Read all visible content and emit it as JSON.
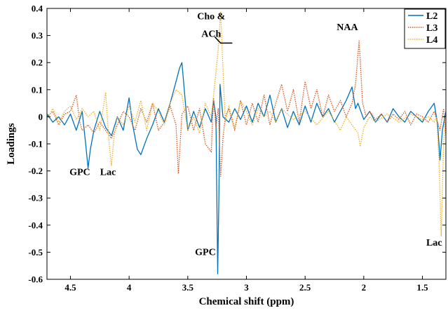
{
  "chart_data": {
    "type": "line",
    "xlabel": "Chemical shift (ppm)",
    "ylabel": "Loadings",
    "xlim": [
      4.7,
      1.3
    ],
    "x_reversed": true,
    "ylim": [
      -0.6,
      0.4
    ],
    "x_ticks": [
      4.5,
      4,
      3.5,
      3,
      2.5,
      2,
      1.5
    ],
    "x_tick_labels": [
      "4.5",
      "4",
      "3.5",
      "3",
      "2.5",
      "2",
      "1.5"
    ],
    "y_ticks": [
      0.4,
      0.3,
      0.2,
      0.1,
      0,
      -0.1,
      -0.2,
      -0.3,
      -0.4,
      -0.5,
      -0.6
    ],
    "y_tick_labels": [
      "0.4",
      "0.3",
      "0.2",
      "0.1",
      "0",
      "-0.1",
      "-0.2",
      "-0.3",
      "-0.4",
      "-0.5",
      "-0.6"
    ],
    "grid": false,
    "legend_position": "top-right",
    "series": [
      {
        "name": "L2",
        "color": "#0072BD",
        "style": "solid",
        "points": [
          [
            4.7,
            0.01
          ],
          [
            4.65,
            -0.02
          ],
          [
            4.6,
            0.0
          ],
          [
            4.55,
            -0.03
          ],
          [
            4.5,
            0.01
          ],
          [
            4.45,
            -0.05
          ],
          [
            4.4,
            0.02
          ],
          [
            4.37,
            -0.1
          ],
          [
            4.35,
            -0.19
          ],
          [
            4.33,
            -0.12
          ],
          [
            4.3,
            -0.05
          ],
          [
            4.25,
            0.02
          ],
          [
            4.2,
            -0.04
          ],
          [
            4.15,
            -0.07
          ],
          [
            4.1,
            0.0
          ],
          [
            4.05,
            -0.05
          ],
          [
            4.0,
            0.07
          ],
          [
            3.97,
            -0.03
          ],
          [
            3.93,
            -0.12
          ],
          [
            3.9,
            -0.14
          ],
          [
            3.85,
            -0.08
          ],
          [
            3.8,
            -0.03
          ],
          [
            3.75,
            0.03
          ],
          [
            3.7,
            -0.02
          ],
          [
            3.65,
            0.05
          ],
          [
            3.6,
            0.13
          ],
          [
            3.57,
            0.18
          ],
          [
            3.55,
            0.2
          ],
          [
            3.52,
            0.05
          ],
          [
            3.5,
            -0.05
          ],
          [
            3.45,
            0.02
          ],
          [
            3.4,
            -0.04
          ],
          [
            3.35,
            0.03
          ],
          [
            3.3,
            -0.02
          ],
          [
            3.28,
            0.06
          ],
          [
            3.26,
            0.0
          ],
          [
            3.245,
            -0.58
          ],
          [
            3.235,
            -0.3
          ],
          [
            3.225,
            0.12
          ],
          [
            3.2,
            0.0
          ],
          [
            3.15,
            -0.02
          ],
          [
            3.1,
            0.03
          ],
          [
            3.05,
            -0.01
          ],
          [
            3.0,
            0.04
          ],
          [
            2.95,
            -0.02
          ],
          [
            2.9,
            0.05
          ],
          [
            2.85,
            0.0
          ],
          [
            2.8,
            0.08
          ],
          [
            2.75,
            -0.02
          ],
          [
            2.7,
            0.03
          ],
          [
            2.65,
            -0.04
          ],
          [
            2.6,
            0.02
          ],
          [
            2.55,
            -0.03
          ],
          [
            2.5,
            0.04
          ],
          [
            2.45,
            -0.02
          ],
          [
            2.4,
            0.05
          ],
          [
            2.35,
            0.0
          ],
          [
            2.3,
            0.03
          ],
          [
            2.25,
            -0.02
          ],
          [
            2.2,
            0.02
          ],
          [
            2.15,
            0.06
          ],
          [
            2.1,
            0.11
          ],
          [
            2.07,
            0.03
          ],
          [
            2.05,
            0.05
          ],
          [
            2.0,
            -0.01
          ],
          [
            1.95,
            0.02
          ],
          [
            1.9,
            -0.02
          ],
          [
            1.85,
            0.01
          ],
          [
            1.8,
            -0.02
          ],
          [
            1.75,
            0.03
          ],
          [
            1.7,
            0.0
          ],
          [
            1.65,
            -0.02
          ],
          [
            1.6,
            0.02
          ],
          [
            1.55,
            0.0
          ],
          [
            1.5,
            -0.02
          ],
          [
            1.45,
            0.02
          ],
          [
            1.4,
            0.05
          ],
          [
            1.37,
            -0.03
          ],
          [
            1.35,
            -0.16
          ],
          [
            1.33,
            -0.05
          ],
          [
            1.3,
            0.02
          ]
        ]
      },
      {
        "name": "L3",
        "color": "#D95319",
        "style": "dotted",
        "points": [
          [
            4.7,
            0.0
          ],
          [
            4.65,
            0.02
          ],
          [
            4.6,
            -0.03
          ],
          [
            4.55,
            0.01
          ],
          [
            4.5,
            0.02
          ],
          [
            4.45,
            0.08
          ],
          [
            4.42,
            -0.02
          ],
          [
            4.4,
            -0.05
          ],
          [
            4.35,
            -0.03
          ],
          [
            4.3,
            -0.06
          ],
          [
            4.25,
            -0.02
          ],
          [
            4.2,
            -0.05
          ],
          [
            4.15,
            -0.08
          ],
          [
            4.1,
            -0.03
          ],
          [
            4.05,
            0.02
          ],
          [
            4.0,
            0.0
          ],
          [
            3.95,
            -0.05
          ],
          [
            3.9,
            0.03
          ],
          [
            3.85,
            -0.02
          ],
          [
            3.8,
            0.05
          ],
          [
            3.75,
            -0.05
          ],
          [
            3.7,
            -0.02
          ],
          [
            3.65,
            0.04
          ],
          [
            3.6,
            -0.03
          ],
          [
            3.58,
            -0.21
          ],
          [
            3.55,
            0.01
          ],
          [
            3.5,
            0.04
          ],
          [
            3.45,
            -0.05
          ],
          [
            3.4,
            0.03
          ],
          [
            3.35,
            -0.1
          ],
          [
            3.3,
            -0.13
          ],
          [
            3.28,
            0.07
          ],
          [
            3.26,
            -0.04
          ],
          [
            3.24,
            0.03
          ],
          [
            3.22,
            -0.22
          ],
          [
            3.2,
            -0.08
          ],
          [
            3.18,
            0.0
          ],
          [
            3.15,
            0.03
          ],
          [
            3.1,
            -0.05
          ],
          [
            3.05,
            0.06
          ],
          [
            3.0,
            -0.03
          ],
          [
            2.95,
            0.05
          ],
          [
            2.9,
            -0.02
          ],
          [
            2.85,
            0.08
          ],
          [
            2.8,
            -0.03
          ],
          [
            2.75,
            0.05
          ],
          [
            2.7,
            0.12
          ],
          [
            2.65,
            0.02
          ],
          [
            2.6,
            0.1
          ],
          [
            2.55,
            -0.02
          ],
          [
            2.5,
            0.13
          ],
          [
            2.45,
            0.03
          ],
          [
            2.4,
            0.1
          ],
          [
            2.35,
            0.0
          ],
          [
            2.3,
            0.08
          ],
          [
            2.25,
            0.02
          ],
          [
            2.2,
            0.06
          ],
          [
            2.15,
            0.0
          ],
          [
            2.1,
            0.05
          ],
          [
            2.07,
            0.12
          ],
          [
            2.04,
            0.28
          ],
          [
            2.01,
            0.05
          ],
          [
            1.98,
            0.0
          ],
          [
            1.95,
            0.02
          ],
          [
            1.9,
            -0.01
          ],
          [
            1.85,
            0.01
          ],
          [
            1.8,
            -0.02
          ],
          [
            1.75,
            0.01
          ],
          [
            1.7,
            -0.01
          ],
          [
            1.65,
            0.02
          ],
          [
            1.6,
            -0.03
          ],
          [
            1.55,
            0.01
          ],
          [
            1.5,
            0.0
          ],
          [
            1.45,
            -0.02
          ],
          [
            1.4,
            0.02
          ],
          [
            1.35,
            -0.05
          ],
          [
            1.32,
            0.03
          ],
          [
            1.3,
            -0.07
          ]
        ]
      },
      {
        "name": "L4",
        "color": "#EDB120",
        "style": "dotted",
        "points": [
          [
            4.7,
            -0.01
          ],
          [
            4.65,
            0.03
          ],
          [
            4.6,
            -0.02
          ],
          [
            4.55,
            0.02
          ],
          [
            4.5,
            0.04
          ],
          [
            4.45,
            -0.01
          ],
          [
            4.4,
            0.03
          ],
          [
            4.35,
            0.0
          ],
          [
            4.3,
            0.02
          ],
          [
            4.25,
            -0.05
          ],
          [
            4.2,
            0.09
          ],
          [
            4.17,
            -0.1
          ],
          [
            4.15,
            -0.18
          ],
          [
            4.13,
            -0.08
          ],
          [
            4.1,
            0.0
          ],
          [
            4.05,
            -0.03
          ],
          [
            4.0,
            0.04
          ],
          [
            3.95,
            -0.02
          ],
          [
            3.9,
            0.06
          ],
          [
            3.85,
            -0.05
          ],
          [
            3.8,
            0.05
          ],
          [
            3.75,
            0.02
          ],
          [
            3.7,
            -0.03
          ],
          [
            3.65,
            0.05
          ],
          [
            3.6,
            0.1
          ],
          [
            3.55,
            0.08
          ],
          [
            3.5,
            -0.05
          ],
          [
            3.45,
            0.0
          ],
          [
            3.4,
            -0.06
          ],
          [
            3.35,
            0.05
          ],
          [
            3.3,
            0.0
          ],
          [
            3.27,
            0.12
          ],
          [
            3.24,
            0.25
          ],
          [
            3.22,
            0.39
          ],
          [
            3.2,
            0.18
          ],
          [
            3.18,
            -0.02
          ],
          [
            3.15,
            0.04
          ],
          [
            3.1,
            -0.04
          ],
          [
            3.05,
            0.06
          ],
          [
            3.0,
            0.02
          ],
          [
            2.95,
            -0.03
          ],
          [
            2.9,
            0.03
          ],
          [
            2.85,
            0.0
          ],
          [
            2.8,
            0.02
          ],
          [
            2.75,
            -0.02
          ],
          [
            2.7,
            0.03
          ],
          [
            2.6,
            -0.01
          ],
          [
            2.5,
            0.02
          ],
          [
            2.4,
            -0.03
          ],
          [
            2.3,
            0.02
          ],
          [
            2.2,
            -0.05
          ],
          [
            2.15,
            0.0
          ],
          [
            2.1,
            -0.03
          ],
          [
            2.05,
            -0.06
          ],
          [
            2.03,
            -0.11
          ],
          [
            2.0,
            -0.04
          ],
          [
            1.95,
            0.0
          ],
          [
            1.9,
            -0.02
          ],
          [
            1.8,
            0.01
          ],
          [
            1.7,
            -0.02
          ],
          [
            1.6,
            0.01
          ],
          [
            1.5,
            -0.01
          ],
          [
            1.45,
            0.0
          ],
          [
            1.4,
            -0.02
          ],
          [
            1.38,
            0.0
          ],
          [
            1.36,
            -0.15
          ],
          [
            1.34,
            -0.44
          ],
          [
            1.32,
            -0.1
          ],
          [
            1.3,
            0.0
          ]
        ]
      }
    ],
    "annotations": [
      {
        "text": "GPC",
        "x": 4.42,
        "y": -0.215
      },
      {
        "text": "Lac",
        "x": 4.18,
        "y": -0.215
      },
      {
        "text": "Cho &",
        "x": 3.3,
        "y": 0.36
      },
      {
        "text": "ACh",
        "x": 3.3,
        "y": 0.295
      },
      {
        "text": "NAA",
        "x": 2.14,
        "y": 0.32
      },
      {
        "text": "GPC",
        "x": 3.35,
        "y": -0.51
      },
      {
        "text": "Lac",
        "x": 1.4,
        "y": -0.475
      }
    ]
  }
}
